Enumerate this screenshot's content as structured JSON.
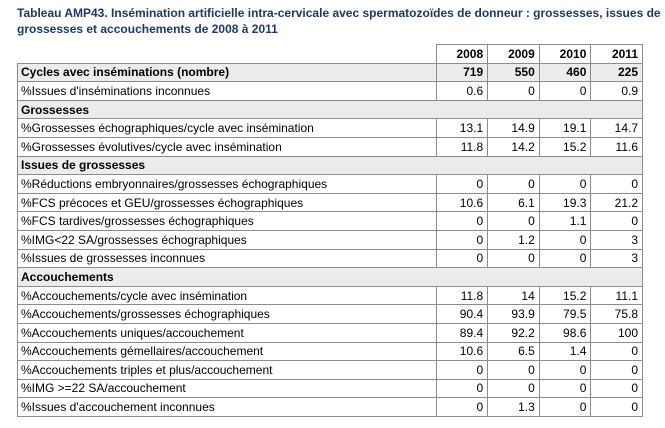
{
  "title": "Tableau AMP43. Insémination artificielle intra-cervicale avec spermatozoïdes de donneur : grossesses, issues de grossesses et accouchements de 2008 à 2011",
  "years": [
    "2008",
    "2009",
    "2010",
    "2011"
  ],
  "rows": [
    {
      "type": "data",
      "style": "bold",
      "label": "Cycles avec inséminations (nombre)",
      "values": [
        "719",
        "550",
        "460",
        "225"
      ]
    },
    {
      "type": "data",
      "style": "normal",
      "label": "%Issues d'inséminations inconnues",
      "values": [
        "0.6",
        "0",
        "0",
        "0.9"
      ]
    },
    {
      "type": "section",
      "label": "Grossesses"
    },
    {
      "type": "data",
      "style": "normal",
      "label": "%Grossesses échographiques/cycle avec insémination",
      "values": [
        "13.1",
        "14.9",
        "19.1",
        "14.7"
      ]
    },
    {
      "type": "data",
      "style": "normal",
      "label": "%Grossesses évolutives/cycle avec insémination",
      "values": [
        "11.8",
        "14.2",
        "15.2",
        "11.6"
      ]
    },
    {
      "type": "section",
      "label": "Issues de grossesses"
    },
    {
      "type": "data",
      "style": "normal",
      "label": "%Réductions embryonnaires/grossesses échographiques",
      "values": [
        "0",
        "0",
        "0",
        "0"
      ]
    },
    {
      "type": "data",
      "style": "normal",
      "label": "%FCS précoces et GEU/grossesses échographiques",
      "values": [
        "10.6",
        "6.1",
        "19.3",
        "21.2"
      ]
    },
    {
      "type": "data",
      "style": "normal",
      "label": "%FCS tardives/grossesses échographiques",
      "values": [
        "0",
        "0",
        "1.1",
        "0"
      ]
    },
    {
      "type": "data",
      "style": "normal",
      "label": "%IMG<22 SA/grossesses échographiques",
      "values": [
        "0",
        "1.2",
        "0",
        "3"
      ]
    },
    {
      "type": "data",
      "style": "normal",
      "label": "%Issues de grossesses inconnues",
      "values": [
        "0",
        "0",
        "0",
        "3"
      ]
    },
    {
      "type": "section",
      "label": "Accouchements"
    },
    {
      "type": "data",
      "style": "normal",
      "label": "%Accouchements/cycle avec insémination",
      "values": [
        "11.8",
        "14",
        "15.2",
        "11.1"
      ]
    },
    {
      "type": "data",
      "style": "normal",
      "label": "%Accouchements/grossesses échographiques",
      "values": [
        "90.4",
        "93.9",
        "79.5",
        "75.8"
      ]
    },
    {
      "type": "data",
      "style": "normal",
      "label": "%Accouchements uniques/accouchement",
      "values": [
        "89.4",
        "92.2",
        "98.6",
        "100"
      ]
    },
    {
      "type": "data",
      "style": "normal",
      "label": "%Accouchements gémellaires/accouchement",
      "values": [
        "10.6",
        "6.5",
        "1.4",
        "0"
      ]
    },
    {
      "type": "data",
      "style": "normal",
      "label": "%Accouchements triples et plus/accouchement",
      "values": [
        "0",
        "0",
        "0",
        "0"
      ]
    },
    {
      "type": "data",
      "style": "normal",
      "label": "%IMG >=22 SA/accouchement",
      "values": [
        "0",
        "0",
        "0",
        "0"
      ]
    },
    {
      "type": "data",
      "style": "normal",
      "label": "%Issues d'accouchement inconnues",
      "values": [
        "0",
        "1.3",
        "0",
        "0"
      ]
    }
  ]
}
